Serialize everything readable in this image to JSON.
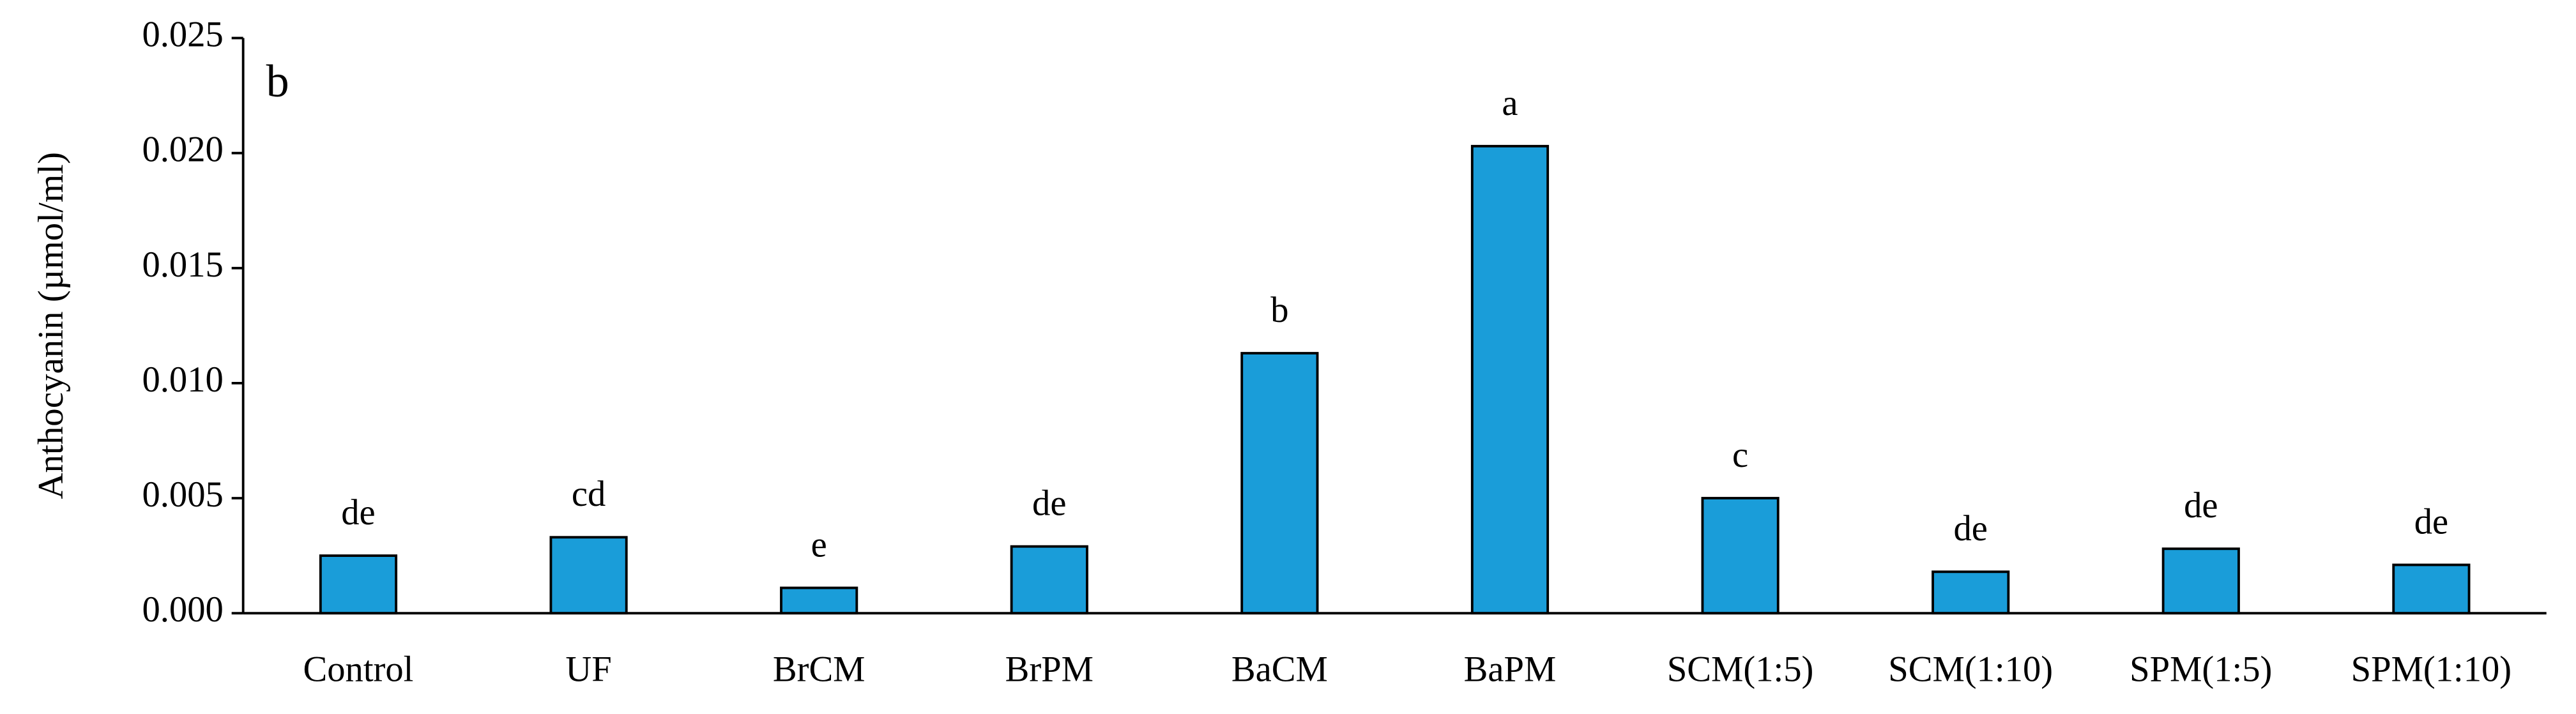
{
  "chart_data": {
    "type": "bar",
    "panel_label": "b",
    "y_label": "Anthocyanin (µmol/ml)",
    "categories": [
      "Control",
      "UF",
      "BrCM",
      "BrPM",
      "BaCM",
      "BaPM",
      "SCM(1:5)",
      "SCM(1:10)",
      "SPM(1:5)",
      "SPM(1:10)"
    ],
    "values": [
      0.0025,
      0.0033,
      0.0011,
      0.0029,
      0.0113,
      0.0203,
      0.005,
      0.0018,
      0.0028,
      0.0021
    ],
    "letters": [
      "de",
      "cd",
      "e",
      "de",
      "b",
      "a",
      "c",
      "de",
      "de",
      "de"
    ],
    "color": "#1a9dd9",
    "ylim": [
      0,
      0.025
    ],
    "yticks": [
      {
        "value": 0,
        "label": "0.000"
      },
      {
        "value": 0.005,
        "label": "0.005"
      },
      {
        "value": 0.01,
        "label": "0.010"
      },
      {
        "value": 0.015,
        "label": "0.015"
      },
      {
        "value": 0.02,
        "label": "0.020"
      },
      {
        "value": 0.025,
        "label": "0.025"
      }
    ]
  }
}
